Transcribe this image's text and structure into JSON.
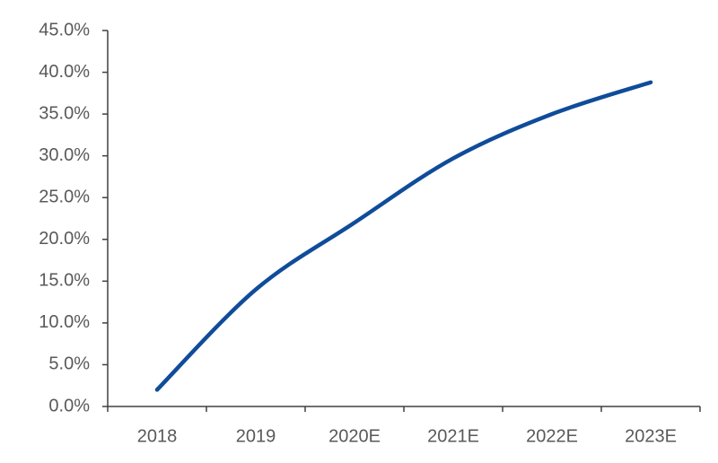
{
  "chart_data": {
    "type": "line",
    "categories": [
      "2018",
      "2019",
      "2020E",
      "2021E",
      "2022E",
      "2023E"
    ],
    "series": [
      {
        "color": "#0f4c9a",
        "values": [
          2.0,
          14.0,
          22.0,
          29.7,
          35.0,
          38.8
        ]
      }
    ],
    "ylim": [
      0,
      45
    ],
    "yticks": [
      {
        "value": 0,
        "label": "0.0%"
      },
      {
        "value": 5,
        "label": "5.0%"
      },
      {
        "value": 10,
        "label": "10.0%"
      },
      {
        "value": 15,
        "label": "15.0%"
      },
      {
        "value": 20,
        "label": "20.0%"
      },
      {
        "value": 25,
        "label": "25.0%"
      },
      {
        "value": 30,
        "label": "30.0%"
      },
      {
        "value": 35,
        "label": "35.0%"
      },
      {
        "value": 40,
        "label": "40.0%"
      },
      {
        "value": 45,
        "label": "45.0%"
      }
    ],
    "grid": false
  }
}
